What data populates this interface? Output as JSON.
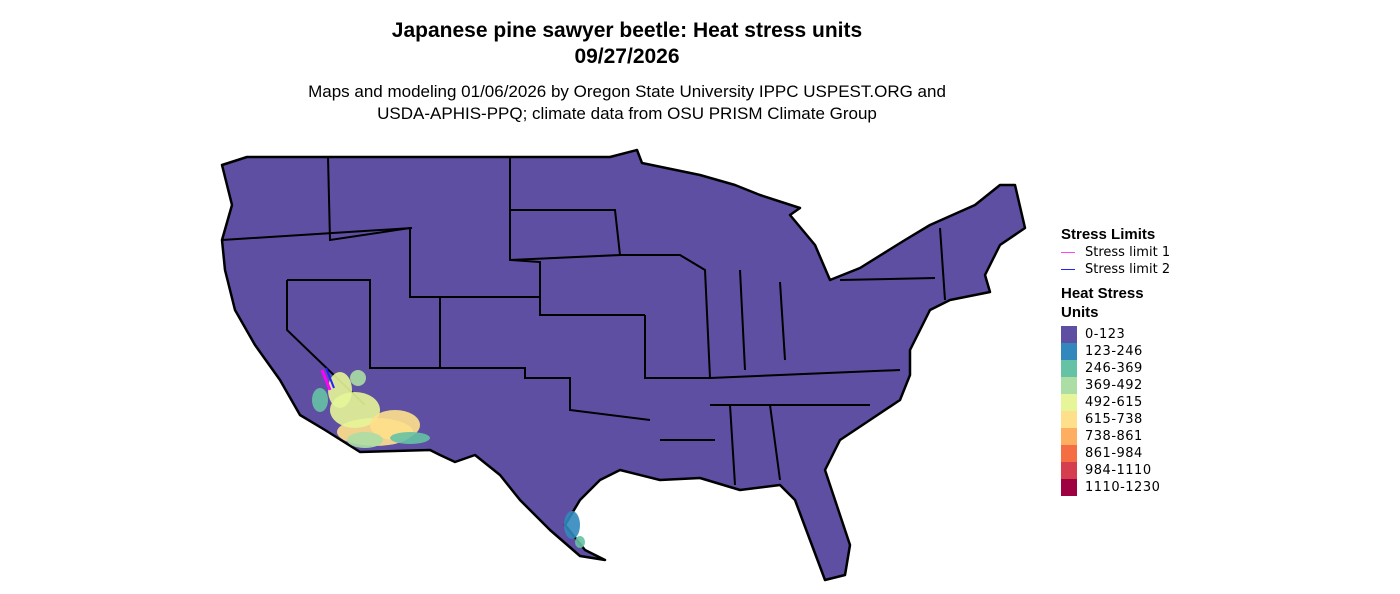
{
  "title": {
    "line1": "Japanese pine sawyer beetle: Heat stress units",
    "line2": "09/27/2026"
  },
  "subtitle": {
    "line1": "Maps and modeling 01/06/2026 by Oregon State University IPPC USPEST.ORG and",
    "line2": "USDA-APHIS-PPQ; climate data from OSU PRISM Climate Group"
  },
  "map": {
    "base_color": "#5E4FA2",
    "border_color": "#000000",
    "hotspot_colors": [
      "#E6F598",
      "#FEE08B",
      "#ABDDA4",
      "#66C2A5",
      "#3288BD"
    ]
  },
  "legend": {
    "stress_title": "Stress Limits",
    "limits": [
      {
        "label": "Stress limit 1",
        "color": "#FF44FF"
      },
      {
        "label": "Stress limit 2",
        "color": "#2222FF"
      }
    ],
    "hs_title": "Heat Stress Units",
    "bins": [
      {
        "label": "0-123",
        "color": "#5E4FA2"
      },
      {
        "label": "123-246",
        "color": "#3288BD"
      },
      {
        "label": "246-369",
        "color": "#66C2A5"
      },
      {
        "label": "369-492",
        "color": "#ABDDA4"
      },
      {
        "label": "492-615",
        "color": "#E6F598"
      },
      {
        "label": "615-738",
        "color": "#FEE08B"
      },
      {
        "label": "738-861",
        "color": "#FDAE61"
      },
      {
        "label": "861-984",
        "color": "#F46D43"
      },
      {
        "label": "984-1110",
        "color": "#D53E4F"
      },
      {
        "label": "1110-1230",
        "color": "#9E0142"
      }
    ]
  }
}
